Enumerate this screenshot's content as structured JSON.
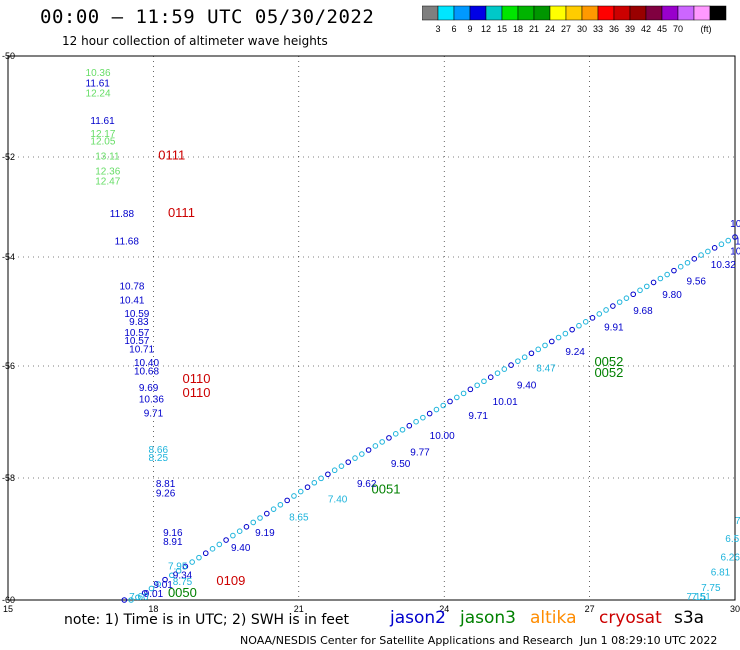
{
  "header": {
    "title": "00:00 – 11:59 UTC 05/30/2022",
    "subtitle": "12 hour collection of altimeter wave heights"
  },
  "colorbar": {
    "unit": "(ft)",
    "colors": [
      "#7f7f7f",
      "#00e6ff",
      "#0099ff",
      "#0000e6",
      "#00c8c8",
      "#00e600",
      "#00b400",
      "#009600",
      "#ffff00",
      "#ffcc00",
      "#ff9900",
      "#ff0000",
      "#cc0000",
      "#990000",
      "#800040",
      "#9900cc",
      "#cc66ff",
      "#ff99ff",
      "#000000"
    ],
    "labels": [
      "3",
      "6",
      "9",
      "12",
      "15",
      "18",
      "21",
      "24",
      "27",
      "30",
      "33",
      "36",
      "39",
      "42",
      "45",
      "70"
    ]
  },
  "map": {
    "x_ticks": [
      "15",
      "18",
      "21",
      "24",
      "27",
      "30"
    ],
    "x_values": [
      15,
      18,
      21,
      24,
      27,
      30
    ],
    "y_ticks": [
      "-50",
      "-52",
      "-54",
      "-56",
      "-58",
      "-60"
    ],
    "y_values": [
      -50,
      -52,
      -54,
      -56,
      -58,
      -60
    ]
  },
  "satellite_colors": {
    "jason2": "#0000cc",
    "jason3": "#008000",
    "altika": "#ff8c00",
    "cryosat": "#cc0000",
    "s3a": "#000000",
    "light_green": "#66dd66",
    "cyan": "#1eb4dc"
  },
  "track_labels": [
    {
      "text": "0111",
      "lon": 18.1,
      "lat": -52.05,
      "sat": "cryosat"
    },
    {
      "text": "0111",
      "lon": 18.3,
      "lat": -53.2,
      "sat": "cryosat"
    },
    {
      "text": "0110",
      "lon": 18.6,
      "lat": -56.3,
      "sat": "cryosat"
    },
    {
      "text": "0110",
      "lon": 18.6,
      "lat": -56.55,
      "sat": "cryosat"
    },
    {
      "text": "0109",
      "lon": 19.3,
      "lat": -59.75,
      "sat": "cryosat"
    },
    {
      "text": "0050",
      "lon": 18.3,
      "lat": -59.95,
      "sat": "jason3"
    },
    {
      "text": "0051",
      "lon": 22.5,
      "lat": -58.25,
      "sat": "jason3"
    },
    {
      "text": "0052",
      "lon": 27.1,
      "lat": -56.0,
      "sat": "jason3"
    },
    {
      "text": "0052",
      "lon": 27.1,
      "lat": -56.2,
      "sat": "jason3"
    }
  ],
  "wave_labels": [
    {
      "t": "10.36",
      "lon": 16.6,
      "lat": -50.4,
      "c": "light_green"
    },
    {
      "t": "11.61",
      "lon": 16.6,
      "lat": -50.6,
      "c": "jason2"
    },
    {
      "t": "12.24",
      "lon": 16.6,
      "lat": -50.8,
      "c": "light_green"
    },
    {
      "t": "11.61",
      "lon": 16.7,
      "lat": -51.35,
      "c": "jason2"
    },
    {
      "t": "12.17",
      "lon": 16.7,
      "lat": -51.6,
      "c": "light_green"
    },
    {
      "t": "12.05",
      "lon": 16.7,
      "lat": -51.75,
      "c": "light_green"
    },
    {
      "t": "13.11",
      "lon": 16.8,
      "lat": -52.05,
      "c": "light_green"
    },
    {
      "t": "12.36",
      "lon": 16.8,
      "lat": -52.35,
      "c": "light_green"
    },
    {
      "t": "12.47",
      "lon": 16.8,
      "lat": -52.55,
      "c": "light_green"
    },
    {
      "t": "11.88",
      "lon": 17.1,
      "lat": -53.2,
      "c": "jason2"
    },
    {
      "t": "11.68",
      "lon": 17.2,
      "lat": -53.75,
      "c": "jason2"
    },
    {
      "t": "10.78",
      "lon": 17.3,
      "lat": -54.6,
      "c": "jason2"
    },
    {
      "t": "10.41",
      "lon": 17.3,
      "lat": -54.85,
      "c": "jason2"
    },
    {
      "t": "10.59",
      "lon": 17.4,
      "lat": -55.1,
      "c": "jason2"
    },
    {
      "t": "9.83",
      "lon": 17.5,
      "lat": -55.25,
      "c": "jason2"
    },
    {
      "t": "10.57",
      "lon": 17.4,
      "lat": -55.45,
      "c": "jason2"
    },
    {
      "t": "10.57",
      "lon": 17.4,
      "lat": -55.6,
      "c": "jason2"
    },
    {
      "t": "10.71",
      "lon": 17.5,
      "lat": -55.75,
      "c": "jason2"
    },
    {
      "t": "10.40",
      "lon": 17.6,
      "lat": -56.0,
      "c": "jason2"
    },
    {
      "t": "10.68",
      "lon": 17.6,
      "lat": -56.15,
      "c": "jason2"
    },
    {
      "t": "9.69",
      "lon": 17.7,
      "lat": -56.45,
      "c": "jason2"
    },
    {
      "t": "10.36",
      "lon": 17.7,
      "lat": -56.65,
      "c": "jason2"
    },
    {
      "t": "9.71",
      "lon": 17.8,
      "lat": -56.9,
      "c": "jason2"
    },
    {
      "t": "8.66",
      "lon": 17.9,
      "lat": -57.55,
      "c": "cyan"
    },
    {
      "t": "8.25",
      "lon": 17.9,
      "lat": -57.7,
      "c": "cyan"
    },
    {
      "t": "8.81",
      "lon": 18.05,
      "lat": -58.15,
      "c": "jason2"
    },
    {
      "t": "9.26",
      "lon": 18.05,
      "lat": -58.3,
      "c": "jason2"
    },
    {
      "t": "9.16",
      "lon": 18.2,
      "lat": -58.95,
      "c": "jason2"
    },
    {
      "t": "8.91",
      "lon": 18.2,
      "lat": -59.1,
      "c": "jason2"
    },
    {
      "t": "7.95",
      "lon": 18.3,
      "lat": -59.5,
      "c": "cyan"
    },
    {
      "t": "9.34",
      "lon": 18.4,
      "lat": -59.65,
      "c": "jason2"
    },
    {
      "t": "9.01",
      "lon": 18.0,
      "lat": -59.8,
      "c": "jason2"
    },
    {
      "t": "8.75",
      "lon": 18.4,
      "lat": -59.75,
      "c": "cyan"
    },
    {
      "t": "9.01",
      "lon": 17.8,
      "lat": -59.95,
      "c": "jason2"
    },
    {
      "t": "7.60",
      "lon": 17.5,
      "lat": -60.1,
      "c": "cyan"
    },
    {
      "t": "9.40",
      "lon": 19.6,
      "lat": -59.2,
      "c": "jason2"
    },
    {
      "t": "9.19",
      "lon": 20.1,
      "lat": -58.95,
      "c": "jason2"
    },
    {
      "t": "8.65",
      "lon": 20.8,
      "lat": -58.7,
      "c": "cyan"
    },
    {
      "t": "7.40",
      "lon": 21.6,
      "lat": -58.4,
      "c": "cyan"
    },
    {
      "t": "9.62",
      "lon": 22.2,
      "lat": -58.15,
      "c": "jason2"
    },
    {
      "t": "9.50",
      "lon": 22.9,
      "lat": -57.8,
      "c": "jason2"
    },
    {
      "t": "9.77",
      "lon": 23.3,
      "lat": -57.6,
      "c": "jason2"
    },
    {
      "t": "10.00",
      "lon": 23.7,
      "lat": -57.3,
      "c": "jason2"
    },
    {
      "t": "9.71",
      "lon": 24.5,
      "lat": -56.95,
      "c": "jason2"
    },
    {
      "t": "10.01",
      "lon": 25.0,
      "lat": -56.7,
      "c": "jason2"
    },
    {
      "t": "9.40",
      "lon": 25.5,
      "lat": -56.4,
      "c": "jason2"
    },
    {
      "t": "8.47",
      "lon": 25.9,
      "lat": -56.1,
      "c": "cyan"
    },
    {
      "t": "9.24",
      "lon": 26.5,
      "lat": -55.8,
      "c": "jason2"
    },
    {
      "t": "9.91",
      "lon": 27.3,
      "lat": -55.35,
      "c": "jason2"
    },
    {
      "t": "9.68",
      "lon": 27.9,
      "lat": -55.05,
      "c": "jason2"
    },
    {
      "t": "9.80",
      "lon": 28.5,
      "lat": -54.75,
      "c": "jason2"
    },
    {
      "t": "9.56",
      "lon": 29.0,
      "lat": -54.5,
      "c": "jason2"
    },
    {
      "t": "10.32",
      "lon": 29.5,
      "lat": -54.2,
      "c": "jason2"
    },
    {
      "t": "10.76",
      "lon": 29.9,
      "lat": -53.95,
      "c": "jason2"
    },
    {
      "t": "10.28",
      "lon": 30.0,
      "lat": -53.75,
      "c": "jason2"
    },
    {
      "t": "10",
      "lon": 29.9,
      "lat": -53.4,
      "c": "jason2"
    },
    {
      "t": "7.75",
      "lon": 29.3,
      "lat": -59.85,
      "c": "cyan"
    },
    {
      "t": "7.51",
      "lon": 29.1,
      "lat": -60.0,
      "c": "cyan"
    },
    {
      "t": "7.15",
      "lon": 29.0,
      "lat": -60.2,
      "c": "cyan"
    },
    {
      "t": "6.81",
      "lon": 29.5,
      "lat": -59.6,
      "c": "cyan"
    },
    {
      "t": "6.26",
      "lon": 29.7,
      "lat": -59.35,
      "c": "cyan"
    },
    {
      "t": "6.5",
      "lon": 29.8,
      "lat": -59.05,
      "c": "cyan"
    },
    {
      "t": "7.",
      "lon": 30.0,
      "lat": -58.75,
      "c": "cyan"
    }
  ],
  "footer": {
    "note": "note: 1) Time is in UTC; 2) SWH is in feet",
    "sat_labels": {
      "jason2": "jason2",
      "jason3": "jason3",
      "altika": "altika",
      "cryosat": "cryosat",
      "s3a": "s3a"
    },
    "credit": "NOAA/NESDIS Center for Satellite Applications and Research",
    "date": "Jun  1 08:29:10 UTC 2022"
  }
}
